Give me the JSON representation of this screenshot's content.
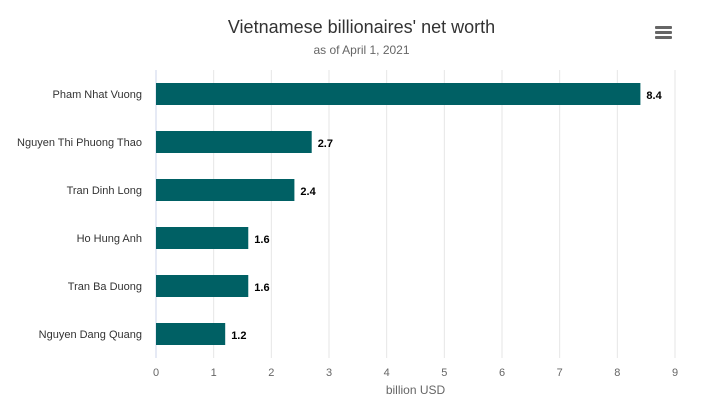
{
  "chart_data": {
    "type": "bar",
    "orientation": "horizontal",
    "title": "Vietnamese billionaires' net worth",
    "subtitle": "as of April 1, 2021",
    "categories": [
      "Pham Nhat Vuong",
      "Nguyen Thi Phuong Thao",
      "Tran Dinh Long",
      "Ho Hung Anh",
      "Tran Ba Duong",
      "Nguyen Dang Quang"
    ],
    "values": [
      8.4,
      2.7,
      2.4,
      1.6,
      1.6,
      1.2
    ],
    "xlabel": "billion USD",
    "ylabel": "",
    "xlim": [
      0,
      9
    ],
    "ticks": [
      "0",
      "1",
      "2",
      "3",
      "4",
      "5",
      "6",
      "7",
      "8",
      "9"
    ],
    "grid": true,
    "bar_color": "#006064",
    "data_labels": true
  },
  "menu": {
    "icon": "hamburger-menu-icon"
  }
}
